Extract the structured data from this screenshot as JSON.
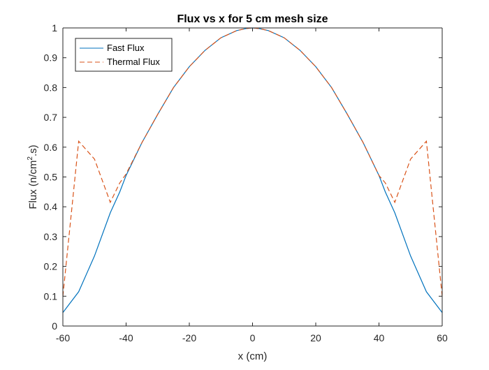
{
  "chart_data": {
    "type": "line",
    "title": "Flux vs x for 5 cm mesh size",
    "xlabel": "x (cm)",
    "ylabel_parts": {
      "before": "Flux (n/cm",
      "sup": "2",
      "after": ".s)"
    },
    "xlim": [
      -60,
      60
    ],
    "ylim": [
      0,
      1
    ],
    "xticks": [
      -60,
      -40,
      -20,
      0,
      20,
      40,
      60
    ],
    "yticks": [
      0,
      0.1,
      0.2,
      0.3,
      0.4,
      0.5,
      0.6,
      0.7,
      0.8,
      0.9,
      1
    ],
    "grid": false,
    "legend_position": "top-left",
    "x": [
      -60,
      -55,
      -50,
      -45,
      -42,
      -40,
      -35,
      -30,
      -25,
      -20,
      -15,
      -10,
      -5,
      -2,
      0,
      2,
      5,
      10,
      15,
      20,
      25,
      30,
      35,
      40,
      42,
      45,
      50,
      55,
      60
    ],
    "series": [
      {
        "name": "Fast Flux",
        "color": "#0072BD",
        "dash": "solid",
        "values": [
          0.045,
          0.115,
          0.235,
          0.38,
          0.45,
          0.505,
          0.615,
          0.71,
          0.8,
          0.87,
          0.925,
          0.967,
          0.991,
          0.998,
          1.0,
          0.998,
          0.991,
          0.967,
          0.925,
          0.87,
          0.8,
          0.71,
          0.615,
          0.505,
          0.45,
          0.38,
          0.235,
          0.115,
          0.045
        ]
      },
      {
        "name": "Thermal Flux",
        "color": "#D95319",
        "dash": "dashed",
        "values": [
          0.1,
          0.62,
          0.56,
          0.415,
          0.48,
          0.51,
          0.615,
          0.71,
          0.8,
          0.87,
          0.925,
          0.967,
          0.991,
          0.998,
          1.0,
          0.998,
          0.991,
          0.967,
          0.925,
          0.87,
          0.8,
          0.71,
          0.615,
          0.505,
          0.48,
          0.415,
          0.56,
          0.62,
          0.1
        ]
      }
    ]
  }
}
